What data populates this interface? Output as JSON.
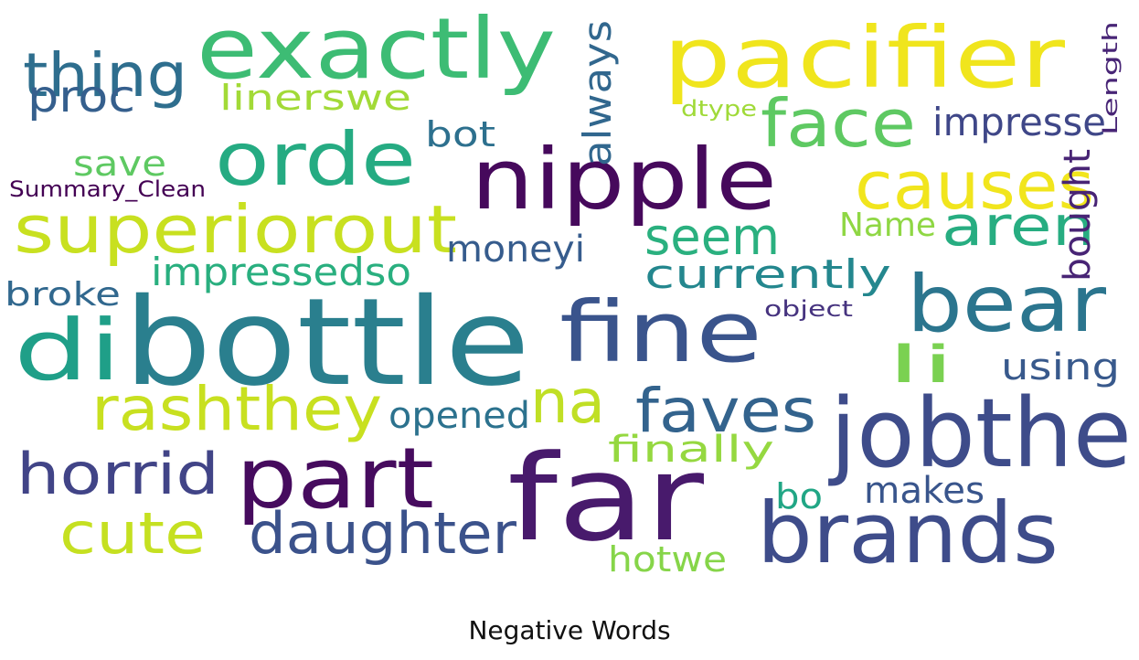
{
  "title": "Negative Words",
  "colors": {
    "background": "#ffffff",
    "title_text": "#111111"
  },
  "words": [
    {
      "text": "bottle",
      "color": "#2a7f8e"
    },
    {
      "text": "far",
      "color": "#481a6c"
    },
    {
      "text": "jobthe",
      "color": "#3e4c8a"
    },
    {
      "text": "exactly",
      "color": "#3dbc74"
    },
    {
      "text": "pacifier",
      "color": "#f0e51d"
    },
    {
      "text": "nipple",
      "color": "#46095c"
    },
    {
      "text": "part",
      "color": "#460b5e"
    },
    {
      "text": "brands",
      "color": "#3e4c8a"
    },
    {
      "text": "fine",
      "color": "#3a548c"
    },
    {
      "text": "bear",
      "color": "#2b758e"
    },
    {
      "text": "di",
      "color": "#1f9f88"
    },
    {
      "text": "superiorout",
      "color": "#c8e020"
    },
    {
      "text": "orde",
      "color": "#25ab82"
    },
    {
      "text": "causes",
      "color": "#f1e51d"
    },
    {
      "text": "face",
      "color": "#5ec962"
    },
    {
      "text": "faves",
      "color": "#33638d"
    },
    {
      "text": "na",
      "color": "#c0df25"
    },
    {
      "text": "rashthey",
      "color": "#c8e020"
    },
    {
      "text": "daughter",
      "color": "#3b528b"
    },
    {
      "text": "horrid",
      "color": "#414487"
    },
    {
      "text": "cute",
      "color": "#c5e021"
    },
    {
      "text": "thing",
      "color": "#2e6e8e"
    },
    {
      "text": "aren",
      "color": "#27ad81"
    },
    {
      "text": "seem",
      "color": "#2ab07f"
    },
    {
      "text": "proc",
      "color": "#355f8d"
    },
    {
      "text": "always",
      "color": "#31678e"
    },
    {
      "text": "bought",
      "color": "#482475"
    },
    {
      "text": "impresse",
      "color": "#3f4788"
    },
    {
      "text": "currently",
      "color": "#24878e"
    },
    {
      "text": "impressedso",
      "color": "#29af7f"
    },
    {
      "text": "moneyi",
      "color": "#365c8d"
    },
    {
      "text": "opened",
      "color": "#2c728e"
    },
    {
      "text": "li",
      "color": "#7ad151"
    },
    {
      "text": "using",
      "color": "#38598c"
    },
    {
      "text": "finally",
      "color": "#95d840"
    },
    {
      "text": "makes",
      "color": "#39558c"
    },
    {
      "text": "linerswe",
      "color": "#a2da37"
    },
    {
      "text": "bot",
      "color": "#2d708e"
    },
    {
      "text": "save",
      "color": "#5ec962"
    },
    {
      "text": "broke",
      "color": "#31688e"
    },
    {
      "text": "Name",
      "color": "#8fd744"
    },
    {
      "text": "hotwe",
      "color": "#86d549"
    },
    {
      "text": "bo",
      "color": "#21a685"
    },
    {
      "text": "Summary_Clean",
      "color": "#440154"
    },
    {
      "text": "dtype",
      "color": "#a0da39"
    },
    {
      "text": "Length",
      "color": "#482576"
    },
    {
      "text": "object",
      "color": "#46337f"
    }
  ]
}
